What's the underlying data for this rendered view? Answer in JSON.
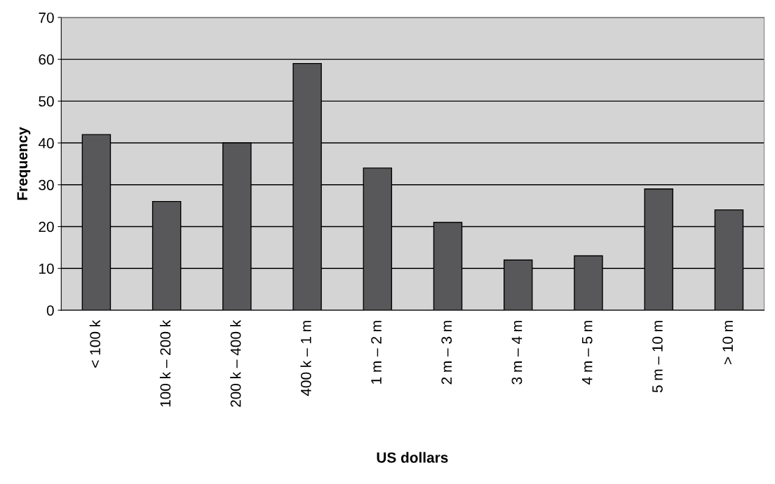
{
  "chart_data": {
    "type": "bar",
    "xlabel": "US dollars",
    "ylabel": "Frequency",
    "categories": [
      "< 100 k",
      "100 k – 200 k",
      "200 k – 400 k",
      "400 k – 1 m",
      "1 m – 2 m",
      "2 m – 3 m",
      "3 m – 4 m",
      "4 m – 5 m",
      "5 m – 10 m",
      "> 10 m"
    ],
    "values": [
      42,
      26,
      40,
      59,
      34,
      21,
      12,
      13,
      29,
      24
    ],
    "color": "#58585a",
    "ylim": [
      0,
      70
    ],
    "yticks": [
      0,
      10,
      20,
      30,
      40,
      50,
      60,
      70
    ],
    "grid": "y"
  }
}
